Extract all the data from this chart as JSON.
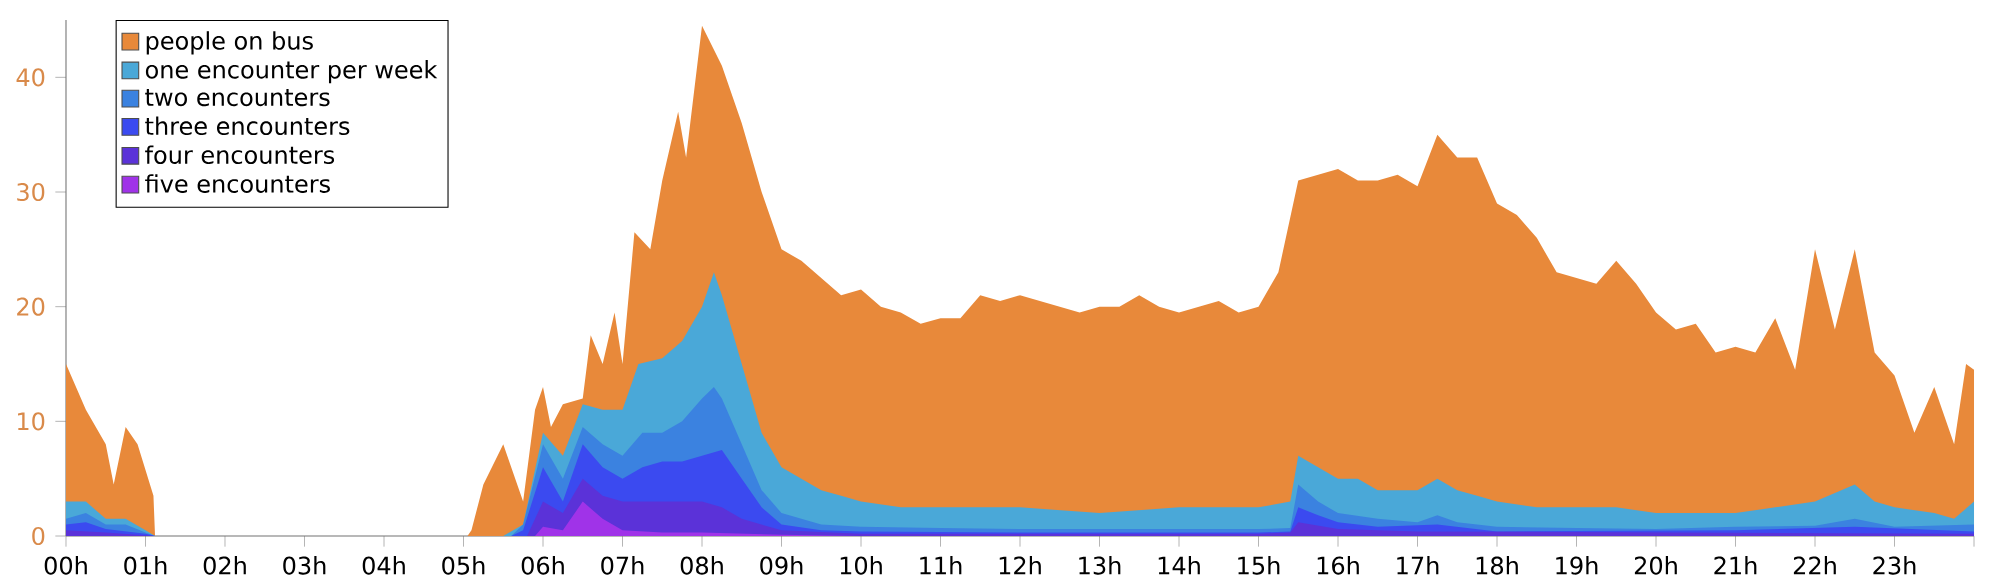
{
  "chart_data": {
    "type": "area",
    "xlim": [
      0,
      24
    ],
    "ylim": [
      0,
      45
    ],
    "legend": "top left",
    "xticks": [
      {
        "value": 0,
        "label": "00h"
      },
      {
        "value": 1,
        "label": "01h"
      },
      {
        "value": 2,
        "label": "02h"
      },
      {
        "value": 3,
        "label": "03h"
      },
      {
        "value": 4,
        "label": "04h"
      },
      {
        "value": 5,
        "label": "05h"
      },
      {
        "value": 6,
        "label": "06h"
      },
      {
        "value": 7,
        "label": "07h"
      },
      {
        "value": 8,
        "label": "08h"
      },
      {
        "value": 9,
        "label": "09h"
      },
      {
        "value": 10,
        "label": "10h"
      },
      {
        "value": 11,
        "label": "11h"
      },
      {
        "value": 12,
        "label": "12h"
      },
      {
        "value": 13,
        "label": "13h"
      },
      {
        "value": 14,
        "label": "14h"
      },
      {
        "value": 15,
        "label": "15h"
      },
      {
        "value": 16,
        "label": "16h"
      },
      {
        "value": 17,
        "label": "17h"
      },
      {
        "value": 18,
        "label": "18h"
      },
      {
        "value": 19,
        "label": "19h"
      },
      {
        "value": 20,
        "label": "20h"
      },
      {
        "value": 21,
        "label": "21h"
      },
      {
        "value": 22,
        "label": "22h"
      },
      {
        "value": 23,
        "label": "23h"
      },
      {
        "value": 24,
        "label": null
      }
    ],
    "yticks": [
      0,
      10,
      20,
      30,
      40
    ],
    "series": [
      {
        "name": "people on bus",
        "color": "#e8893a",
        "x": [
          0,
          0.25,
          0.5,
          0.6,
          0.75,
          0.9,
          1.1,
          1.12,
          5.05,
          5.1,
          5.25,
          5.5,
          5.75,
          5.9,
          6.0,
          6.1,
          6.25,
          6.5,
          6.6,
          6.75,
          6.9,
          7.0,
          7.15,
          7.35,
          7.5,
          7.7,
          7.8,
          8.0,
          8.25,
          8.5,
          8.75,
          9.0,
          9.25,
          9.5,
          9.75,
          10.0,
          10.25,
          10.5,
          10.75,
          11.0,
          11.25,
          11.5,
          11.75,
          12.0,
          12.25,
          12.5,
          12.75,
          13.0,
          13.25,
          13.5,
          13.75,
          14.0,
          14.25,
          14.5,
          14.75,
          15.0,
          15.25,
          15.5,
          15.75,
          16.0,
          16.25,
          16.5,
          16.75,
          17.0,
          17.25,
          17.5,
          17.75,
          18.0,
          18.25,
          18.5,
          18.75,
          19.0,
          19.25,
          19.5,
          19.75,
          20.0,
          20.25,
          20.5,
          20.75,
          21.0,
          21.25,
          21.5,
          21.75,
          22.0,
          22.25,
          22.5,
          22.75,
          23.0,
          23.25,
          23.5,
          23.75,
          23.9,
          24.0
        ],
        "values": [
          15,
          11,
          8,
          4.5,
          9.5,
          8,
          3.5,
          0,
          0,
          0.5,
          4.5,
          8,
          3,
          11,
          13,
          9.5,
          11.5,
          12,
          17.5,
          15,
          19.5,
          15,
          26.5,
          25,
          31,
          37,
          33,
          44.5,
          41,
          36,
          30,
          25,
          24,
          22.5,
          21,
          21.5,
          20,
          19.5,
          18.5,
          19,
          19,
          21,
          20.5,
          21,
          20.5,
          20,
          19.5,
          20,
          20,
          21,
          20,
          19.5,
          20,
          20.5,
          19.5,
          20,
          23,
          31,
          31.5,
          32,
          31,
          31,
          31.5,
          30.5,
          35,
          33,
          33,
          29,
          28,
          26,
          23,
          22.5,
          22,
          24,
          22,
          19.5,
          18,
          18.5,
          16,
          16.5,
          16,
          19,
          14.5,
          25,
          18,
          25,
          16,
          14,
          9,
          13,
          8,
          15,
          14.5
        ]
      },
      {
        "name": "one encounter per week",
        "color": "#4aa8d8",
        "x": [
          0,
          0.25,
          0.5,
          0.75,
          1.0,
          1.12,
          5.5,
          5.75,
          6.0,
          6.25,
          6.5,
          6.75,
          7.0,
          7.2,
          7.5,
          7.75,
          8.0,
          8.15,
          8.25,
          8.5,
          8.75,
          9.0,
          9.25,
          9.5,
          9.75,
          10.0,
          10.5,
          11.0,
          12,
          13,
          14,
          15,
          15.4,
          15.5,
          15.75,
          16.0,
          16.25,
          16.5,
          16.75,
          17.0,
          17.25,
          17.5,
          17.75,
          18,
          18.5,
          19,
          19.5,
          20,
          20.5,
          21,
          21.5,
          22,
          22.5,
          22.75,
          23,
          23.5,
          23.75,
          24
        ],
        "values": [
          3,
          3,
          1.5,
          1.5,
          0.5,
          0,
          0,
          1,
          9,
          7,
          11.5,
          11,
          11,
          15,
          15.5,
          17,
          20,
          23,
          21,
          15,
          9,
          6,
          5,
          4,
          3.5,
          3,
          2.5,
          2.5,
          2.5,
          2,
          2.5,
          2.5,
          3,
          7,
          6,
          5,
          5,
          4,
          4,
          4,
          5,
          4,
          3.5,
          3,
          2.5,
          2.5,
          2.5,
          2,
          2,
          2,
          2.5,
          3,
          4.5,
          3,
          2.5,
          2,
          1.5,
          3
        ]
      },
      {
        "name": "two encounters",
        "color": "#3b82e0",
        "x": [
          0,
          0.25,
          0.5,
          0.75,
          1,
          1.12,
          5.6,
          5.75,
          6.0,
          6.25,
          6.5,
          6.75,
          7,
          7.25,
          7.5,
          7.75,
          8.0,
          8.15,
          8.25,
          8.5,
          8.75,
          9,
          9.5,
          10,
          11,
          12,
          13,
          14,
          15,
          15.4,
          15.5,
          15.75,
          16,
          16.5,
          17,
          17.25,
          17.5,
          18,
          19,
          20,
          21,
          22,
          22.5,
          23,
          24
        ],
        "values": [
          1.5,
          2,
          1,
          1,
          0.3,
          0,
          0,
          1,
          8,
          5,
          9.5,
          8,
          7,
          9,
          9,
          10,
          12,
          13,
          12,
          8,
          4,
          2,
          1,
          0.8,
          0.7,
          0.6,
          0.6,
          0.6,
          0.6,
          0.7,
          4.5,
          3,
          2,
          1.5,
          1.2,
          1.8,
          1.2,
          0.8,
          0.7,
          0.6,
          0.8,
          0.9,
          1.5,
          0.8,
          1
        ]
      },
      {
        "name": "three encounters",
        "color": "#3b4af0",
        "x": [
          0,
          0.25,
          0.5,
          1,
          1.12,
          5.6,
          5.75,
          6.0,
          6.25,
          6.5,
          6.75,
          7,
          7.25,
          7.5,
          7.75,
          8,
          8.25,
          8.5,
          8.75,
          9,
          9.5,
          10,
          12,
          15,
          15.4,
          15.5,
          15.75,
          16,
          16.5,
          17.25,
          18,
          21,
          22.5,
          24
        ],
        "values": [
          1,
          1.2,
          0.6,
          0.2,
          0,
          0,
          0.5,
          6,
          3,
          8,
          6,
          5,
          6,
          6.5,
          6.5,
          7,
          7.5,
          5,
          2.5,
          1,
          0.5,
          0.4,
          0.3,
          0.3,
          0.4,
          2.5,
          1.8,
          1.2,
          0.8,
          1,
          0.4,
          0.5,
          0.8,
          0.4
        ]
      },
      {
        "name": "four encounters",
        "color": "#5b32d8",
        "x": [
          0,
          0.5,
          1.12,
          5.8,
          6,
          6.25,
          6.5,
          6.75,
          7,
          7.5,
          8,
          8.25,
          8.5,
          9,
          10,
          15,
          15.4,
          15.5,
          16,
          17,
          24
        ],
        "values": [
          0.5,
          0.3,
          0,
          0,
          3,
          2,
          5,
          3.5,
          3,
          3,
          3,
          2.5,
          1.5,
          0.5,
          0.2,
          0.2,
          0.3,
          1.2,
          0.6,
          0.4,
          0.2
        ]
      },
      {
        "name": "five encounters",
        "color": "#a033e8",
        "x": [
          0,
          5.9,
          6.0,
          6.25,
          6.5,
          6.75,
          7,
          7.5,
          8,
          9,
          10,
          24
        ],
        "values": [
          0,
          0,
          0.8,
          0.5,
          3,
          1.5,
          0.5,
          0.3,
          0.3,
          0.1,
          0,
          0
        ]
      }
    ]
  }
}
